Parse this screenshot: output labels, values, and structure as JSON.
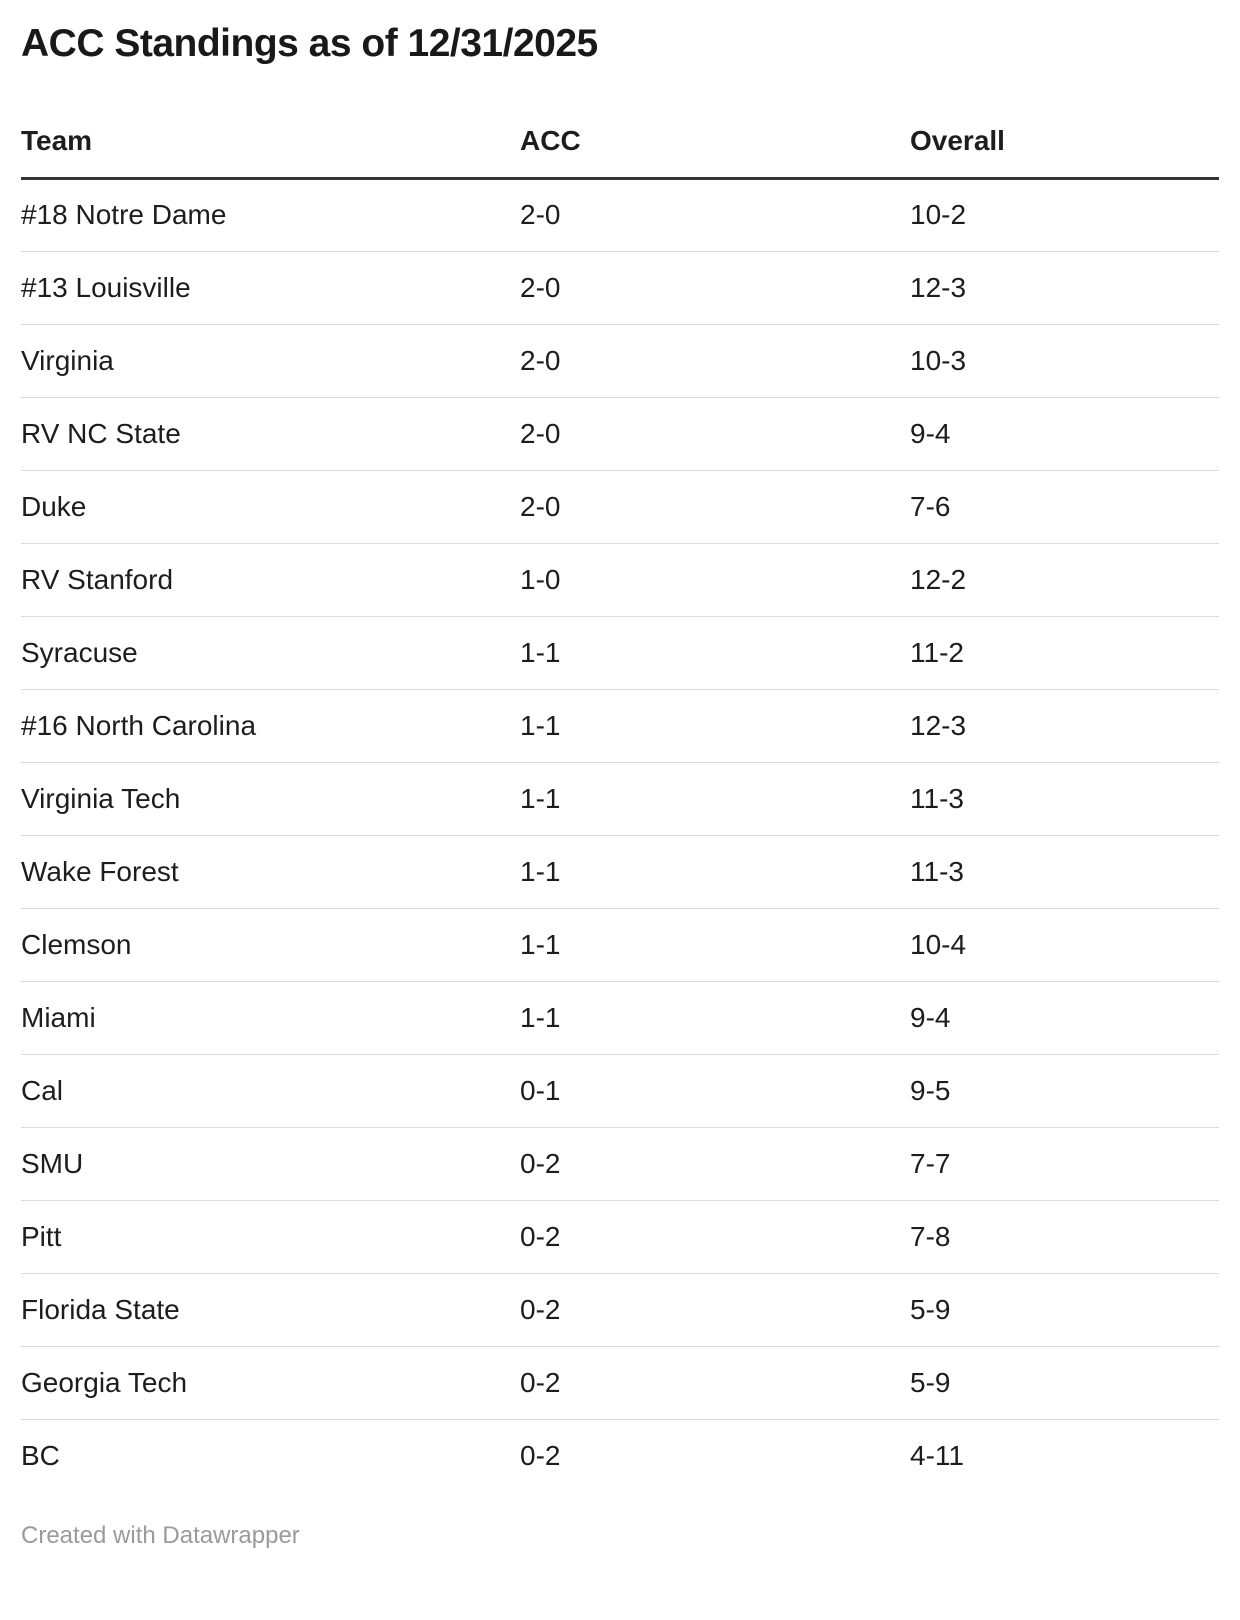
{
  "title": "ACC Standings as of 12/31/2025",
  "footer": {
    "credit": "Created with Datawrapper"
  },
  "colors": {
    "title_text": "#191919",
    "body_text": "#1d1d1d",
    "header_rule": "#333333",
    "row_divider": "#dcdcdc",
    "footer_text": "#9a9a9a",
    "background": "#ffffff"
  },
  "chart_data": {
    "type": "table",
    "title": "ACC Standings as of 12/31/2025",
    "columns": [
      "Team",
      "ACC",
      "Overall"
    ],
    "rows": [
      [
        "#18 Notre Dame",
        "2-0",
        "10-2"
      ],
      [
        "#13 Louisville",
        "2-0",
        "12-3"
      ],
      [
        "Virginia",
        "2-0",
        "10-3"
      ],
      [
        "RV NC State",
        "2-0",
        "9-4"
      ],
      [
        "Duke",
        "2-0",
        "7-6"
      ],
      [
        "RV Stanford",
        "1-0",
        "12-2"
      ],
      [
        "Syracuse",
        "1-1",
        "11-2"
      ],
      [
        "#16 North Carolina",
        "1-1",
        "12-3"
      ],
      [
        "Virginia Tech",
        "1-1",
        "11-3"
      ],
      [
        "Wake Forest",
        "1-1",
        "11-3"
      ],
      [
        "Clemson",
        "1-1",
        "10-4"
      ],
      [
        "Miami",
        "1-1",
        "9-4"
      ],
      [
        "Cal",
        "0-1",
        "9-5"
      ],
      [
        "SMU",
        "0-2",
        "7-7"
      ],
      [
        "Pitt",
        "0-2",
        "7-8"
      ],
      [
        "Florida State",
        "0-2",
        "5-9"
      ],
      [
        "Georgia Tech",
        "0-2",
        "5-9"
      ],
      [
        "BC",
        "0-2",
        "4-11"
      ]
    ]
  }
}
